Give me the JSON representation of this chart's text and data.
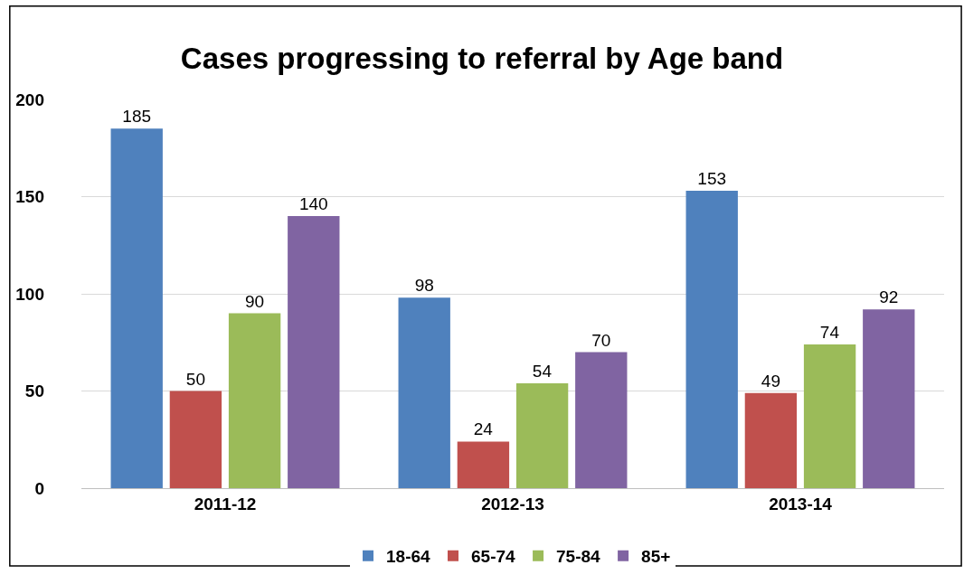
{
  "chart_data": {
    "type": "bar",
    "title": "Cases progressing to referral by Age band",
    "categories": [
      "2011-12",
      "2012-13",
      "2013-14"
    ],
    "series": [
      {
        "name": "18-64",
        "color": "#4f81bd",
        "values": [
          185,
          98,
          153
        ]
      },
      {
        "name": "65-74",
        "color": "#c0504d",
        "values": [
          50,
          24,
          49
        ]
      },
      {
        "name": "75-84",
        "color": "#9bbb59",
        "values": [
          90,
          54,
          74
        ]
      },
      {
        "name": "85+",
        "color": "#8064a2",
        "values": [
          140,
          70,
          92
        ]
      }
    ],
    "ylim": [
      0,
      200
    ],
    "yticks": [
      0,
      50,
      100,
      150,
      200
    ],
    "grid": "y",
    "legend": "bottom",
    "data_labels": true
  }
}
